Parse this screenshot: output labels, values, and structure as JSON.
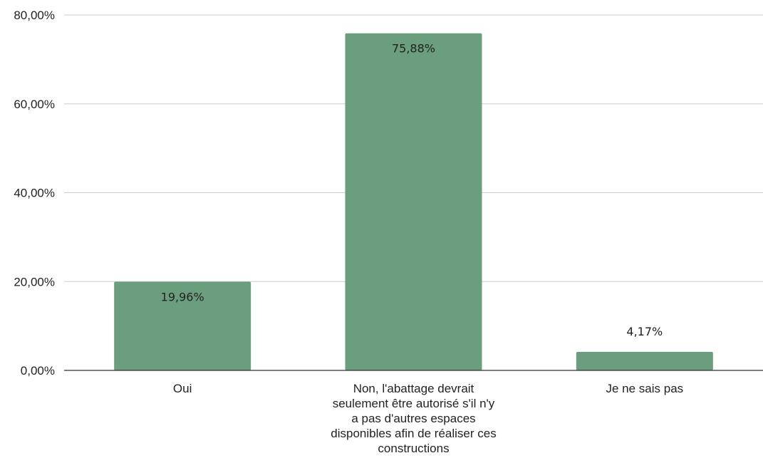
{
  "chart_data": {
    "type": "bar",
    "categories": [
      "Oui",
      "Non, l'abattage devrait seulement être autorisé s'il n'y a pas d'autres espaces disponibles afin de réaliser ces constructions",
      "Je ne sais pas"
    ],
    "category_lines": [
      [
        "Oui"
      ],
      [
        "Non, l'abattage devrait",
        "seulement être autorisé s'il n'y",
        "a pas d'autres espaces",
        "disponibles afin de réaliser ces",
        "constructions"
      ],
      [
        "Je ne sais pas"
      ]
    ],
    "values": [
      19.96,
      75.88,
      4.17
    ],
    "data_labels": [
      "19,96%",
      "75,88%",
      "4,17%"
    ],
    "yticks": [
      0,
      20,
      40,
      60,
      80
    ],
    "ytick_labels": [
      "0,00%",
      "20,00%",
      "40,00%",
      "60,00%",
      "80,00%"
    ],
    "ylim": [
      0,
      80
    ],
    "title": "",
    "xlabel": "",
    "ylabel": "",
    "grid": true,
    "legend": "none",
    "bar_color": "#6a9e7c",
    "grid_color": "#cccccc",
    "axis_color": "#333333"
  }
}
